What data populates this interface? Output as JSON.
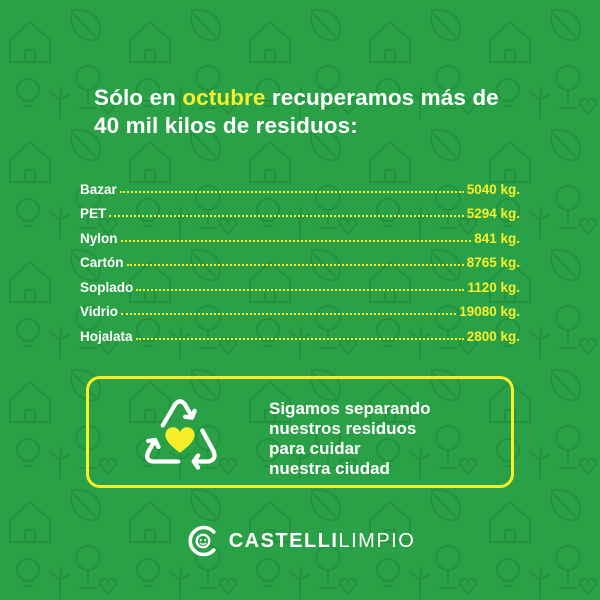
{
  "colors": {
    "background": "#2aa146",
    "accent_yellow": "#f7ef2a",
    "text": "#ffffff"
  },
  "headline": {
    "line1_pre": "Sólo en ",
    "line1_highlight": "octubre",
    "line1_post": " recuperamos más de",
    "line2": "40 mil kilos de residuos:"
  },
  "items": [
    {
      "name": "Bazar",
      "value": "5040 kg."
    },
    {
      "name": "PET",
      "value": "5294 kg."
    },
    {
      "name": "Nylon",
      "value": "841 kg."
    },
    {
      "name": "Cartón",
      "value": "8765 kg."
    },
    {
      "name": "Soplado",
      "value": "1120 kg."
    },
    {
      "name": "Vidrio",
      "value": "19080 kg."
    },
    {
      "name": "Hojalata",
      "value": "2800 kg."
    }
  ],
  "card": {
    "icon": "recycle-heart-icon",
    "lines": [
      "Sigamos separando",
      "nuestros residuos",
      "para cuidar",
      "nuestra ciudad"
    ]
  },
  "brand": {
    "icon": "castelli-limpio-logo-icon",
    "part1": "CASTELLI",
    "part2": "LIMPIO"
  }
}
